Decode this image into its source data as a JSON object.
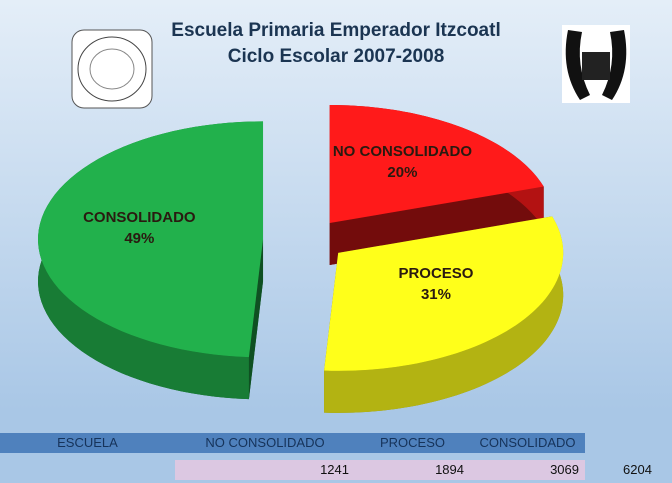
{
  "chart_data": {
    "type": "pie",
    "title": [
      "Escuela Primaria Emperador Itzcoatl",
      "Ciclo Escolar 2007-2008"
    ],
    "categories": [
      "NO CONSOLIDADO",
      "PROCESO",
      "CONSOLIDADO"
    ],
    "values": [
      20,
      31,
      49
    ],
    "value_labels": [
      "20%",
      "31%",
      "49%"
    ],
    "colors": [
      "#ff1a1a",
      "#ffff1a",
      "#22b14c"
    ]
  },
  "table": {
    "header": [
      "ESCUELA",
      "NO CONSOLIDADO",
      "PROCESO",
      "CONSOLIDADO"
    ],
    "rows": [
      [
        "1241",
        "1894",
        "3069",
        "6204"
      ]
    ]
  }
}
